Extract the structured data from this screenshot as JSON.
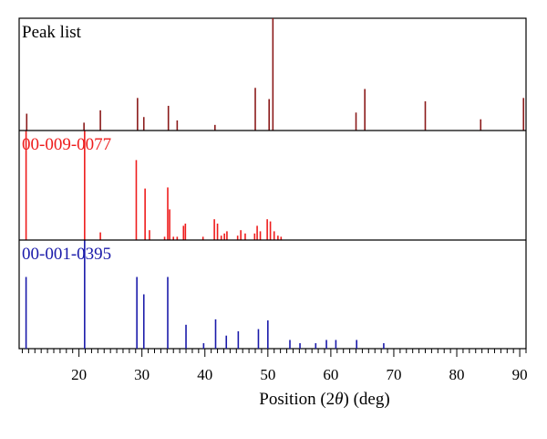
{
  "chart_data": {
    "type": "bar",
    "xlabel_parts": {
      "prefix": "Position (2",
      "symbol": "θ",
      "suffix": ") (deg)"
    },
    "xlim": [
      10.5,
      91
    ],
    "x_ticks": [
      20,
      30,
      40,
      50,
      60,
      70,
      80,
      90
    ],
    "x_tick_labels": [
      "20",
      "30",
      "40",
      "50",
      "60",
      "70",
      "80",
      "90"
    ],
    "panels": [
      {
        "name": "Peak list",
        "color": "#8b1a1a",
        "ylim": [
          0,
          100
        ],
        "peaks": [
          {
            "x": 11.7,
            "y": 15
          },
          {
            "x": 20.8,
            "y": 7
          },
          {
            "x": 23.4,
            "y": 18
          },
          {
            "x": 29.3,
            "y": 29
          },
          {
            "x": 30.3,
            "y": 12
          },
          {
            "x": 34.2,
            "y": 22
          },
          {
            "x": 35.6,
            "y": 9
          },
          {
            "x": 41.6,
            "y": 5
          },
          {
            "x": 48.0,
            "y": 38
          },
          {
            "x": 50.2,
            "y": 28
          },
          {
            "x": 50.8,
            "y": 100
          },
          {
            "x": 64.0,
            "y": 16
          },
          {
            "x": 65.4,
            "y": 37
          },
          {
            "x": 75.0,
            "y": 26
          },
          {
            "x": 83.8,
            "y": 10
          },
          {
            "x": 90.6,
            "y": 29
          }
        ]
      },
      {
        "name": "00-009-0077",
        "color": "#ee1c1c",
        "ylim": [
          0,
          100
        ],
        "peaks": [
          {
            "x": 11.6,
            "y": 100
          },
          {
            "x": 20.9,
            "y": 100
          },
          {
            "x": 23.4,
            "y": 7
          },
          {
            "x": 29.1,
            "y": 73
          },
          {
            "x": 30.5,
            "y": 47
          },
          {
            "x": 31.2,
            "y": 9
          },
          {
            "x": 33.6,
            "y": 3
          },
          {
            "x": 34.1,
            "y": 48
          },
          {
            "x": 34.4,
            "y": 28
          },
          {
            "x": 35.0,
            "y": 3
          },
          {
            "x": 35.6,
            "y": 3
          },
          {
            "x": 36.6,
            "y": 13
          },
          {
            "x": 36.9,
            "y": 15
          },
          {
            "x": 39.7,
            "y": 3
          },
          {
            "x": 41.5,
            "y": 19
          },
          {
            "x": 42.0,
            "y": 15
          },
          {
            "x": 42.6,
            "y": 4
          },
          {
            "x": 43.1,
            "y": 6
          },
          {
            "x": 43.5,
            "y": 8
          },
          {
            "x": 45.2,
            "y": 4
          },
          {
            "x": 45.7,
            "y": 9
          },
          {
            "x": 46.4,
            "y": 6
          },
          {
            "x": 47.9,
            "y": 6
          },
          {
            "x": 48.3,
            "y": 13
          },
          {
            "x": 48.8,
            "y": 8
          },
          {
            "x": 49.9,
            "y": 19
          },
          {
            "x": 50.4,
            "y": 17
          },
          {
            "x": 51.0,
            "y": 8
          },
          {
            "x": 51.6,
            "y": 4
          },
          {
            "x": 52.1,
            "y": 3
          }
        ]
      },
      {
        "name": "00-001-0395",
        "color": "#1a1aaa",
        "ylim": [
          0,
          100
        ],
        "peaks": [
          {
            "x": 11.6,
            "y": 66
          },
          {
            "x": 20.9,
            "y": 100
          },
          {
            "x": 29.2,
            "y": 66
          },
          {
            "x": 30.3,
            "y": 50
          },
          {
            "x": 34.1,
            "y": 66
          },
          {
            "x": 37.0,
            "y": 22
          },
          {
            "x": 39.8,
            "y": 5
          },
          {
            "x": 41.7,
            "y": 27
          },
          {
            "x": 43.4,
            "y": 12
          },
          {
            "x": 45.3,
            "y": 16
          },
          {
            "x": 48.5,
            "y": 18
          },
          {
            "x": 50.0,
            "y": 26
          },
          {
            "x": 53.5,
            "y": 8
          },
          {
            "x": 55.1,
            "y": 5
          },
          {
            "x": 57.6,
            "y": 5
          },
          {
            "x": 59.3,
            "y": 8
          },
          {
            "x": 60.8,
            "y": 8
          },
          {
            "x": 64.1,
            "y": 8
          },
          {
            "x": 68.4,
            "y": 5
          }
        ]
      }
    ]
  }
}
